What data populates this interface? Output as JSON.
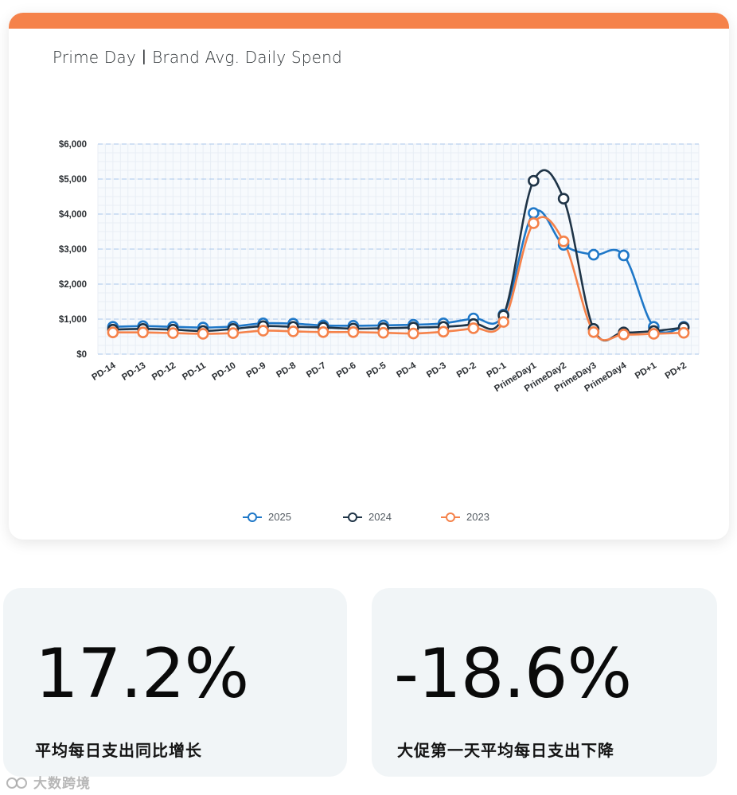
{
  "chart_card": {
    "title": "Prime Day丨Brand Avg. Daily Spend",
    "accent_color": "#f5824a"
  },
  "chart_data": {
    "type": "line",
    "title": "Prime Day丨Brand Avg. Daily Spend",
    "xlabel": "",
    "ylabel": "",
    "categories": [
      "PD-14",
      "PD-13",
      "PD-12",
      "PD-11",
      "PD-10",
      "PD-9",
      "PD-8",
      "PD-7",
      "PD-6",
      "PD-5",
      "PD-4",
      "PD-3",
      "PD-2",
      "PD-1",
      "PrimeDay1",
      "PrimeDay2",
      "PrimeDay3",
      "PrimeDay4",
      "PD+1",
      "PD+2"
    ],
    "y_ticks": [
      "$0",
      "$1,000",
      "$2,000",
      "$3,000",
      "$4,000",
      "$5,000",
      "$6,000"
    ],
    "ylim": [
      0,
      6000
    ],
    "grid": true,
    "legend_position": "bottom",
    "series": [
      {
        "name": "2025",
        "color": "#1f78c8",
        "values": [
          780,
          800,
          780,
          760,
          790,
          880,
          870,
          820,
          810,
          820,
          840,
          880,
          1020,
          1130,
          4030,
          3120,
          2840,
          2820,
          780,
          780
        ]
      },
      {
        "name": "2024",
        "color": "#1f3447",
        "values": [
          700,
          720,
          700,
          660,
          720,
          800,
          780,
          760,
          730,
          740,
          760,
          780,
          860,
          1100,
          4950,
          4440,
          720,
          620,
          660,
          760
        ]
      },
      {
        "name": "2023",
        "color": "#f5824a",
        "values": [
          620,
          620,
          600,
          580,
          600,
          670,
          650,
          630,
          630,
          610,
          590,
          640,
          740,
          920,
          3740,
          3220,
          630,
          560,
          580,
          610
        ]
      }
    ]
  },
  "stats": [
    {
      "value": "17.2%",
      "label": "平均每日支出同比增长"
    },
    {
      "value": "-18.6%",
      "label": "大促第一天平均每日支出下降"
    }
  ],
  "watermark": {
    "text": "大数跨境"
  }
}
